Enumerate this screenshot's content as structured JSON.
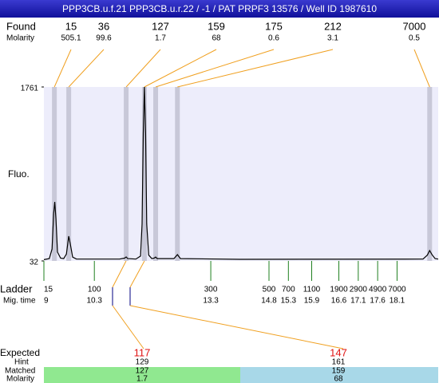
{
  "chart_data": {
    "type": "line",
    "title": "PPP3CB.u.f.21  PPP3CB.u.r.22 / -1 / PAT PRPF3 13576 / Well ID 1987610",
    "y_label": "Fluo.",
    "ylim": [
      32,
      1761
    ],
    "yticks": [
      32,
      1761
    ],
    "xlim": [
      9,
      19.16
    ],
    "x": [
      9.0,
      9.14,
      9.21,
      9.25,
      9.28,
      9.31,
      9.35,
      9.43,
      9.51,
      9.58,
      9.64,
      9.68,
      9.74,
      9.84,
      10.95,
      11.08,
      11.12,
      11.16,
      11.37,
      11.49,
      11.53,
      11.56,
      11.59,
      11.62,
      11.65,
      11.7,
      11.78,
      11.84,
      11.88,
      11.92,
      12.35,
      12.44,
      12.52,
      14.04,
      18.77,
      18.88,
      18.94,
      19.0,
      19.08,
      19.16
    ],
    "values": [
      45,
      55,
      150,
      500,
      619,
      450,
      120,
      60,
      55,
      100,
      278,
      200,
      70,
      50,
      50,
      60,
      72,
      55,
      50,
      80,
      400,
      1300,
      1761,
      1300,
      400,
      90,
      55,
      60,
      70,
      55,
      55,
      95,
      55,
      48,
      50,
      90,
      135,
      95,
      55,
      50
    ],
    "color": "#000000",
    "found_label": "Found",
    "molarity_label": "Molarity",
    "found_sizes": [
      15,
      36,
      127,
      159,
      175,
      212,
      7000
    ],
    "found_molarity": [
      505.1,
      99.6,
      1.7,
      68,
      0.6,
      3.1,
      0.5
    ],
    "found_times": [
      9.27,
      9.64,
      11.12,
      11.59,
      11.88,
      12.44,
      18.94
    ],
    "ladder_label": "Ladder",
    "time_label": "Mig. time",
    "ladder_sizes": [
      15,
      100,
      300,
      500,
      700,
      1100,
      1900,
      2900,
      4900,
      7000
    ],
    "ladder_times": [
      9,
      10.3,
      13.3,
      14.8,
      15.3,
      15.9,
      16.6,
      17.1,
      17.6,
      18.1
    ]
  },
  "expected": {
    "labels": [
      "Expected",
      "Hint",
      "Matched",
      "Molarity"
    ],
    "columns": [
      {
        "expected": 117,
        "hint": 129,
        "matched": 127,
        "molarity": 1.7
      },
      {
        "expected": 147,
        "hint": 161,
        "matched": 159,
        "molarity": 68
      }
    ]
  }
}
